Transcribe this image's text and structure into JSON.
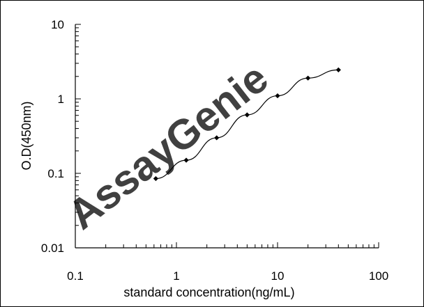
{
  "chart_data": {
    "type": "scatter",
    "xscale": "log",
    "yscale": "log",
    "xlim": [
      0.1,
      100
    ],
    "ylim": [
      0.01,
      10
    ],
    "xlabel": "standard concentration(ng/mL)",
    "ylabel": "O.D(450nm)",
    "x_tick_labels": [
      "0.1",
      "1",
      "10",
      "100"
    ],
    "y_tick_labels": [
      "0.01",
      "0.1",
      "1",
      "10"
    ],
    "grid": false,
    "legend": "none",
    "series": [
      {
        "marker": "diamond",
        "connected": true,
        "color": "#000000",
        "x": [
          0.625,
          1.25,
          2.5,
          5,
          10,
          20,
          40
        ],
        "y": [
          0.085,
          0.15,
          0.3,
          0.61,
          1.1,
          1.9,
          2.45
        ]
      }
    ]
  },
  "watermark": {
    "text": "AssayGenie",
    "color": "#a9cfe3"
  }
}
